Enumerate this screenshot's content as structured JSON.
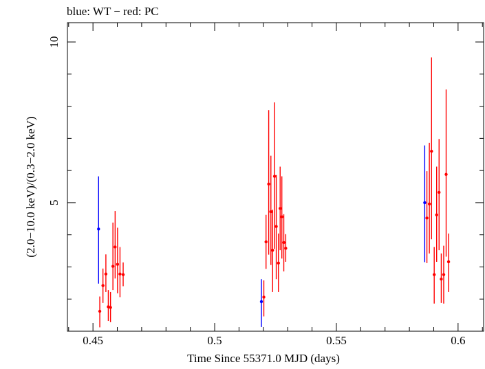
{
  "chart_data": {
    "type": "scatter",
    "title": "blue: WT − red: PC",
    "xlabel": "Time Since 55371.0 MJD (days)",
    "ylabel": "(2.0−10.0 keV)/(0.3−2.0 keV)",
    "xlim": [
      0.4395,
      0.6105
    ],
    "ylim": [
      1.0,
      10.6
    ],
    "x_ticks": [
      0.45,
      0.5,
      0.55,
      0.6
    ],
    "x_tick_labels": [
      "0.45",
      "0.5",
      "0.55",
      "0.6"
    ],
    "y_ticks": [
      5,
      10
    ],
    "y_tick_labels": [
      "5",
      "10"
    ],
    "grid": false,
    "series": [
      {
        "name": "WT",
        "color": "#0000ff",
        "points": [
          {
            "x": 0.4523,
            "y": 4.18,
            "lo": 2.48,
            "hi": 5.82
          },
          {
            "x": 0.5192,
            "y": 1.92,
            "lo": 1.13,
            "hi": 2.62
          },
          {
            "x": 0.5863,
            "y": 5.0,
            "lo": 3.15,
            "hi": 6.78
          }
        ]
      },
      {
        "name": "PC",
        "color": "#ff0000",
        "points": [
          {
            "x": 0.4528,
            "y": 1.62,
            "lo": 1.12,
            "hi": 2.08
          },
          {
            "x": 0.4541,
            "y": 2.42,
            "lo": 1.88,
            "hi": 2.95
          },
          {
            "x": 0.4553,
            "y": 2.78,
            "lo": 2.22,
            "hi": 3.39
          },
          {
            "x": 0.4563,
            "y": 1.76,
            "lo": 1.32,
            "hi": 2.28
          },
          {
            "x": 0.4572,
            "y": 1.74,
            "lo": 1.28,
            "hi": 2.22
          },
          {
            "x": 0.4582,
            "y": 3.02,
            "lo": 2.28,
            "hi": 4.38
          },
          {
            "x": 0.4591,
            "y": 3.62,
            "lo": 2.64,
            "hi": 4.74
          },
          {
            "x": 0.4601,
            "y": 3.08,
            "lo": 2.18,
            "hi": 4.22
          },
          {
            "x": 0.4611,
            "y": 2.78,
            "lo": 2.06,
            "hi": 3.62
          },
          {
            "x": 0.4624,
            "y": 2.76,
            "lo": 2.4,
            "hi": 3.14
          },
          {
            "x": 0.5202,
            "y": 2.06,
            "lo": 1.46,
            "hi": 2.58
          },
          {
            "x": 0.5211,
            "y": 3.78,
            "lo": 2.94,
            "hi": 4.62
          },
          {
            "x": 0.5222,
            "y": 5.58,
            "lo": 3.38,
            "hi": 7.88
          },
          {
            "x": 0.5231,
            "y": 4.72,
            "lo": 3.06,
            "hi": 6.46
          },
          {
            "x": 0.5238,
            "y": 3.52,
            "lo": 2.22,
            "hi": 4.78
          },
          {
            "x": 0.5246,
            "y": 5.82,
            "lo": 3.56,
            "hi": 8.12
          },
          {
            "x": 0.5253,
            "y": 4.26,
            "lo": 2.62,
            "hi": 5.86
          },
          {
            "x": 0.5262,
            "y": 3.12,
            "lo": 2.22,
            "hi": 4.04
          },
          {
            "x": 0.5269,
            "y": 4.82,
            "lo": 3.52,
            "hi": 6.12
          },
          {
            "x": 0.5276,
            "y": 4.56,
            "lo": 3.26,
            "hi": 5.82
          },
          {
            "x": 0.5284,
            "y": 3.76,
            "lo": 2.86,
            "hi": 4.64
          },
          {
            "x": 0.5292,
            "y": 3.58,
            "lo": 3.16,
            "hi": 4.02
          },
          {
            "x": 0.5872,
            "y": 4.52,
            "lo": 3.12,
            "hi": 5.98
          },
          {
            "x": 0.5882,
            "y": 4.96,
            "lo": 3.42,
            "hi": 6.86
          },
          {
            "x": 0.5891,
            "y": 6.6,
            "lo": 3.86,
            "hi": 9.52
          },
          {
            "x": 0.5902,
            "y": 2.76,
            "lo": 1.86,
            "hi": 3.62
          },
          {
            "x": 0.5912,
            "y": 4.62,
            "lo": 3.16,
            "hi": 6.12
          },
          {
            "x": 0.5922,
            "y": 5.32,
            "lo": 3.52,
            "hi": 6.98
          },
          {
            "x": 0.5931,
            "y": 2.62,
            "lo": 1.88,
            "hi": 3.42
          },
          {
            "x": 0.5941,
            "y": 2.76,
            "lo": 1.86,
            "hi": 3.66
          },
          {
            "x": 0.5951,
            "y": 5.88,
            "lo": 3.32,
            "hi": 8.52
          },
          {
            "x": 0.5961,
            "y": 3.16,
            "lo": 2.22,
            "hi": 4.04
          }
        ]
      }
    ]
  }
}
